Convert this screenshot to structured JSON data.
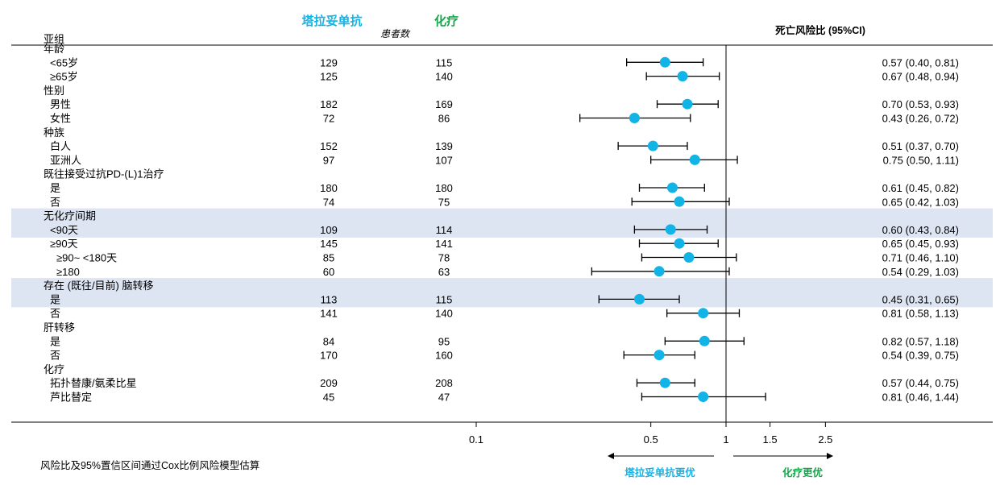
{
  "chart_data": {
    "type": "forest",
    "title": "死亡风险比 (95%CI)",
    "arms": {
      "treatment": "塔拉妥单抗",
      "control": "化疗"
    },
    "patients_label": "患者数",
    "subgroup_header": "亚组",
    "xscale": "log",
    "xlim": [
      0.1,
      2.5
    ],
    "reference_line": 1,
    "xticks": [
      {
        "value": 0.1,
        "label": "0.1"
      },
      {
        "value": 0.5,
        "label": "0.5"
      },
      {
        "value": 1,
        "label": "1"
      },
      {
        "value": 1.5,
        "label": "1.5"
      },
      {
        "value": 2.5,
        "label": "2.5"
      }
    ],
    "favors": {
      "left": "塔拉妥单抗更优",
      "right": "化疗更优"
    },
    "footnote": "风险比及95%置信区间通过Cox比例风险模型估算",
    "rows": [
      {
        "label": "年龄",
        "header": true
      },
      {
        "label": "<65岁",
        "indent": 1,
        "n_treat": "129",
        "n_ctrl": "115",
        "hr": 0.57,
        "lo": 0.4,
        "hi": 0.81,
        "ci_text": "0.57 (0.40, 0.81)"
      },
      {
        "label": "≥65岁",
        "indent": 1,
        "n_treat": "125",
        "n_ctrl": "140",
        "hr": 0.67,
        "lo": 0.48,
        "hi": 0.94,
        "ci_text": "0.67 (0.48, 0.94)"
      },
      {
        "label": "性别",
        "header": true
      },
      {
        "label": "男性",
        "indent": 1,
        "n_treat": "182",
        "n_ctrl": "169",
        "hr": 0.7,
        "lo": 0.53,
        "hi": 0.93,
        "ci_text": "0.70 (0.53, 0.93)"
      },
      {
        "label": "女性",
        "indent": 1,
        "n_treat": "72",
        "n_ctrl": "86",
        "hr": 0.43,
        "lo": 0.26,
        "hi": 0.72,
        "ci_text": "0.43 (0.26, 0.72)"
      },
      {
        "label": "种族",
        "header": true
      },
      {
        "label": "白人",
        "indent": 1,
        "n_treat": "152",
        "n_ctrl": "139",
        "hr": 0.51,
        "lo": 0.37,
        "hi": 0.7,
        "ci_text": "0.51 (0.37, 0.70)"
      },
      {
        "label": "亚洲人",
        "indent": 1,
        "n_treat": "97",
        "n_ctrl": "107",
        "hr": 0.75,
        "lo": 0.5,
        "hi": 1.11,
        "ci_text": "0.75 (0.50, 1.11)"
      },
      {
        "label": "既往接受过抗PD-(L)1治疗",
        "header": true
      },
      {
        "label": "是",
        "indent": 1,
        "n_treat": "180",
        "n_ctrl": "180",
        "hr": 0.61,
        "lo": 0.45,
        "hi": 0.82,
        "ci_text": "0.61 (0.45, 0.82)"
      },
      {
        "label": "否",
        "indent": 1,
        "n_treat": "74",
        "n_ctrl": "75",
        "hr": 0.65,
        "lo": 0.42,
        "hi": 1.03,
        "ci_text": "0.65 (0.42, 1.03)"
      },
      {
        "label": "无化疗间期",
        "header": true,
        "band": true
      },
      {
        "label": "<90天",
        "indent": 1,
        "n_treat": "109",
        "n_ctrl": "114",
        "hr": 0.6,
        "lo": 0.43,
        "hi": 0.84,
        "ci_text": "0.60 (0.43, 0.84)",
        "band": true
      },
      {
        "label": "≥90天",
        "indent": 1,
        "n_treat": "145",
        "n_ctrl": "141",
        "hr": 0.65,
        "lo": 0.45,
        "hi": 0.93,
        "ci_text": "0.65 (0.45, 0.93)"
      },
      {
        "label": "≥90~ <180天",
        "indent": 2,
        "n_treat": "85",
        "n_ctrl": "78",
        "hr": 0.71,
        "lo": 0.46,
        "hi": 1.1,
        "ci_text": "0.71 (0.46, 1.10)"
      },
      {
        "label": "≥180",
        "indent": 2,
        "n_treat": "60",
        "n_ctrl": "63",
        "hr": 0.54,
        "lo": 0.29,
        "hi": 1.03,
        "ci_text": "0.54 (0.29, 1.03)"
      },
      {
        "label": "存在 (既往/目前) 脑转移",
        "header": true,
        "band": true
      },
      {
        "label": "是",
        "indent": 1,
        "n_treat": "113",
        "n_ctrl": "115",
        "hr": 0.45,
        "lo": 0.31,
        "hi": 0.65,
        "ci_text": "0.45 (0.31, 0.65)",
        "band": true
      },
      {
        "label": "否",
        "indent": 1,
        "n_treat": "141",
        "n_ctrl": "140",
        "hr": 0.81,
        "lo": 0.58,
        "hi": 1.13,
        "ci_text": "0.81 (0.58, 1.13)"
      },
      {
        "label": "肝转移",
        "header": true
      },
      {
        "label": "是",
        "indent": 1,
        "n_treat": "84",
        "n_ctrl": "95",
        "hr": 0.82,
        "lo": 0.57,
        "hi": 1.18,
        "ci_text": "0.82 (0.57, 1.18)"
      },
      {
        "label": "否",
        "indent": 1,
        "n_treat": "170",
        "n_ctrl": "160",
        "hr": 0.54,
        "lo": 0.39,
        "hi": 0.75,
        "ci_text": "0.54 (0.39, 0.75)"
      },
      {
        "label": "化疗",
        "header": true
      },
      {
        "label": "拓扑替康/氨柔比星",
        "indent": 1,
        "n_treat": "209",
        "n_ctrl": "208",
        "hr": 0.57,
        "lo": 0.44,
        "hi": 0.75,
        "ci_text": "0.57 (0.44, 0.75)"
      },
      {
        "label": "芦比替定",
        "indent": 1,
        "n_treat": "45",
        "n_ctrl": "47",
        "hr": 0.81,
        "lo": 0.46,
        "hi": 1.44,
        "ci_text": "0.81 (0.46, 1.44)"
      }
    ],
    "colors": {
      "marker": "#12b3e6",
      "treatment": "#12b3e6",
      "control": "#13a84a",
      "band": "#dde4f2",
      "line": "#000000"
    }
  }
}
